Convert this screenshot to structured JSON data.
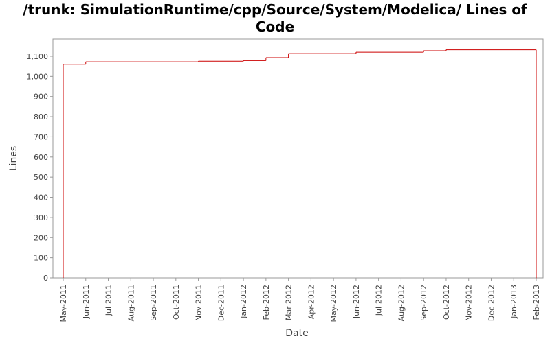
{
  "chart_data": {
    "type": "step-line",
    "title": "/trunk: SimulationRuntime/cpp/Source/System/Modelica/ Lines of Code",
    "x_label": "Date",
    "y_label": "Lines",
    "x": [
      "2011-05",
      "2011-05",
      "2011-06",
      "2011-11",
      "2012-01",
      "2012-02",
      "2012-03",
      "2012-03",
      "2012-06",
      "2012-09",
      "2012-10",
      "2013-02"
    ],
    "series": [
      {
        "name": "Lines",
        "color": "#cc0000",
        "values": [
          0,
          1060,
          1072,
          1075,
          1078,
          1093,
          1103,
          1113,
          1120,
          1127,
          1132,
          0
        ]
      }
    ],
    "xlim": [
      "2011-05",
      "2013-02"
    ],
    "xticks": [
      {
        "value": "2011-05",
        "label": "May-2011"
      },
      {
        "value": "2011-06",
        "label": "Jun-2011"
      },
      {
        "value": "2011-07",
        "label": "Jul-2011"
      },
      {
        "value": "2011-08",
        "label": "Aug-2011"
      },
      {
        "value": "2011-09",
        "label": "Sep-2011"
      },
      {
        "value": "2011-10",
        "label": "Oct-2011"
      },
      {
        "value": "2011-11",
        "label": "Nov-2011"
      },
      {
        "value": "2011-12",
        "label": "Dec-2011"
      },
      {
        "value": "2012-01",
        "label": "Jan-2012"
      },
      {
        "value": "2012-02",
        "label": "Feb-2012"
      },
      {
        "value": "2012-03",
        "label": "Mar-2012"
      },
      {
        "value": "2012-04",
        "label": "Apr-2012"
      },
      {
        "value": "2012-05",
        "label": "May-2012"
      },
      {
        "value": "2012-06",
        "label": "Jun-2012"
      },
      {
        "value": "2012-07",
        "label": "Jul-2012"
      },
      {
        "value": "2012-08",
        "label": "Aug-2012"
      },
      {
        "value": "2012-09",
        "label": "Sep-2012"
      },
      {
        "value": "2012-10",
        "label": "Oct-2012"
      },
      {
        "value": "2012-11",
        "label": "Nov-2012"
      },
      {
        "value": "2012-12",
        "label": "Dec-2012"
      },
      {
        "value": "2013-01",
        "label": "Jan-2013"
      },
      {
        "value": "2013-02",
        "label": "Feb-2013"
      }
    ],
    "ylim": [
      0,
      1185
    ],
    "yticks": [
      0,
      100,
      200,
      300,
      400,
      500,
      600,
      700,
      800,
      900,
      {
        "value": 1000,
        "label": "1,000"
      },
      {
        "value": 1100,
        "label": "1,100"
      }
    ],
    "grid": false
  }
}
